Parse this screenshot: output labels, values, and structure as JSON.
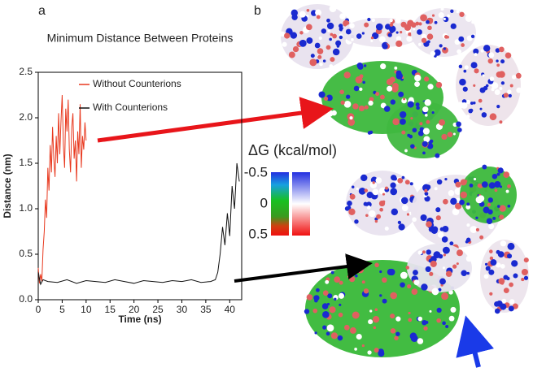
{
  "panel_a": "a",
  "panel_b": "b",
  "chart_data": {
    "type": "line",
    "title": "Minimum Distance Between Proteins",
    "x_label": "Time (ns)",
    "y_label": "Distance (nm)",
    "xlim": [
      0,
      42.5
    ],
    "xticks": [
      0,
      5,
      10,
      15,
      20,
      25,
      30,
      35,
      40
    ],
    "ylim": [
      0,
      2.5
    ],
    "yticks": [
      {
        "value": 0,
        "label": "0.0"
      },
      0.5,
      {
        "value": 1,
        "label": "1.0"
      },
      1.5,
      {
        "value": 2,
        "label": "2.0"
      },
      2.5
    ],
    "legend": "upper left",
    "grid": false,
    "series": [
      {
        "name": "Without Counterions",
        "color": "#e8391f",
        "x": [
          0,
          0.25,
          0.5,
          0.75,
          1,
          1.25,
          1.5,
          1.75,
          2,
          2.25,
          2.5,
          2.75,
          3,
          3.25,
          3.5,
          3.75,
          4,
          4.25,
          4.5,
          4.75,
          5,
          5.25,
          5.5,
          5.75,
          6,
          6.25,
          6.5,
          6.75,
          7,
          7.25,
          7.5,
          7.75,
          8,
          8.25,
          8.5,
          8.75,
          9,
          9.25,
          9.5,
          9.75,
          10
        ],
        "values": [
          0.35,
          0.18,
          0.28,
          0.2,
          0.55,
          0.75,
          1.1,
          0.9,
          1.45,
          1.2,
          1.7,
          1.4,
          1.9,
          1.55,
          1.35,
          1.8,
          1.5,
          2.05,
          1.6,
          1.95,
          2.25,
          1.7,
          1.45,
          2.1,
          1.85,
          2.2,
          1.65,
          1.4,
          1.9,
          2.05,
          1.55,
          1.75,
          1.3,
          1.85,
          1.6,
          2.15,
          1.45,
          1.8,
          1.65,
          1.95,
          1.75
        ]
      },
      {
        "name": "With Counterions",
        "color": "#111111",
        "x": [
          0,
          0.5,
          1,
          2,
          4,
          6,
          8,
          10,
          12,
          14,
          16,
          18,
          20,
          22,
          24,
          26,
          28,
          30,
          32,
          34,
          36,
          37,
          37.5,
          38,
          38.5,
          39,
          39.5,
          40,
          40.5,
          41,
          41.5,
          42
        ],
        "values": [
          0.3,
          0.17,
          0.22,
          0.2,
          0.19,
          0.22,
          0.18,
          0.21,
          0.2,
          0.19,
          0.22,
          0.2,
          0.18,
          0.21,
          0.2,
          0.19,
          0.21,
          0.2,
          0.22,
          0.19,
          0.2,
          0.22,
          0.3,
          0.5,
          0.8,
          0.6,
          0.95,
          0.7,
          1.25,
          1.0,
          1.5,
          1.3
        ]
      }
    ]
  },
  "colorbar": {
    "title": "ΔG (kcal/mol)",
    "ticks": [
      -0.5,
      0,
      0.5
    ]
  }
}
